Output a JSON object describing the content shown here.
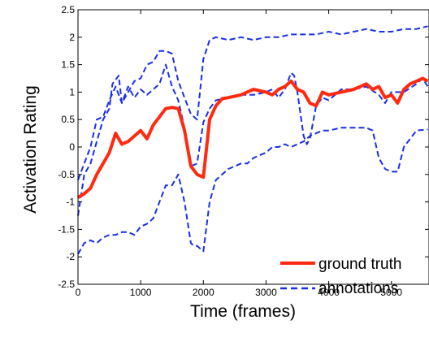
{
  "chart_data": {
    "type": "line",
    "title": "",
    "xlabel": "Time (frames)",
    "ylabel": "Activation Rating",
    "xlim": [
      0,
      5600
    ],
    "ylim": [
      -2.5,
      2.5
    ],
    "xticks": [
      0,
      1000,
      2000,
      3000,
      4000,
      5000
    ],
    "yticks": [
      -2.5,
      -2,
      -1.5,
      -1,
      -0.5,
      0,
      0.5,
      1,
      1.5,
      2,
      2.5
    ],
    "xtick_labels": [
      "0",
      "1000",
      "2000",
      "3000",
      "4000",
      "5000"
    ],
    "ytick_labels": [
      "-2.5",
      "-2",
      "-1.5",
      "-1",
      "-0.5",
      "0",
      "0.5",
      "1",
      "1.5",
      "2",
      "2.5"
    ],
    "grid": false,
    "legend_position": "bottom-right",
    "legend": [
      "ground truth",
      "annotations"
    ],
    "series": [
      {
        "name": "ground truth",
        "color": "#ff2a10",
        "style": "solid",
        "x": [
          0,
          100,
          200,
          300,
          400,
          500,
          600,
          700,
          800,
          900,
          1000,
          1100,
          1200,
          1300,
          1400,
          1500,
          1600,
          1700,
          1800,
          1900,
          2000,
          2100,
          2200,
          2300,
          2400,
          2600,
          2800,
          3000,
          3100,
          3200,
          3300,
          3400,
          3500,
          3600,
          3700,
          3800,
          3900,
          4000,
          4200,
          4400,
          4600,
          4700,
          4800,
          4900,
          5000,
          5100,
          5200,
          5300,
          5400,
          5500,
          5580
        ],
        "y": [
          -0.92,
          -0.85,
          -0.75,
          -0.5,
          -0.3,
          -0.1,
          0.25,
          0.05,
          0.1,
          0.2,
          0.3,
          0.15,
          0.4,
          0.55,
          0.7,
          0.72,
          0.7,
          0.3,
          -0.35,
          -0.5,
          -0.55,
          0.5,
          0.75,
          0.88,
          0.9,
          0.95,
          1.05,
          1.0,
          0.95,
          1.05,
          1.1,
          1.2,
          1.05,
          1.0,
          0.8,
          0.75,
          1.0,
          0.95,
          1.0,
          1.05,
          1.15,
          1.05,
          1.1,
          0.9,
          0.95,
          0.8,
          1.05,
          1.15,
          1.2,
          1.25,
          1.2
        ]
      },
      {
        "name": "",
        "color": "#1a2ee8",
        "style": "dashed",
        "x": [
          0,
          100,
          200,
          300,
          400,
          500,
          550,
          650,
          700,
          800,
          900,
          1000,
          1100,
          1200,
          1300,
          1400,
          1500,
          1600,
          1700,
          1800,
          1900,
          2000,
          2100,
          2200,
          2400,
          2600,
          2800,
          3000,
          3200,
          3400,
          3600,
          3800,
          4000,
          4200,
          4400,
          4600,
          4800,
          5000,
          5200,
          5400,
          5580
        ],
        "y": [
          -1.25,
          -0.5,
          -0.3,
          0.1,
          0.5,
          0.7,
          1.15,
          1.3,
          0.8,
          1.0,
          1.2,
          1.25,
          1.5,
          1.55,
          1.75,
          1.75,
          1.7,
          1.2,
          0.9,
          0.6,
          0.5,
          1.6,
          1.95,
          2.0,
          1.95,
          2.0,
          1.95,
          2.0,
          2.0,
          2.05,
          2.05,
          2.05,
          2.1,
          2.05,
          2.1,
          2.15,
          2.1,
          2.1,
          2.15,
          2.15,
          2.2
        ]
      },
      {
        "name": "",
        "color": "#1a2ee8",
        "style": "dashed",
        "x": [
          0,
          100,
          200,
          300,
          400,
          500,
          600,
          700,
          800,
          900,
          1000,
          1100,
          1200,
          1300,
          1400,
          1500,
          1600,
          1700,
          1800,
          1900,
          2000,
          2100,
          2200,
          2400,
          2600,
          2800,
          3000,
          3100,
          3200,
          3300,
          3400,
          3450,
          3500,
          3600,
          3650,
          3700,
          3800,
          3900,
          4000,
          4200,
          4400,
          4600,
          4800,
          4900,
          5000,
          5200,
          5400,
          5500,
          5580
        ],
        "y": [
          -0.6,
          -0.3,
          0.0,
          0.5,
          0.55,
          0.85,
          1.1,
          0.8,
          1.1,
          0.9,
          1.05,
          0.95,
          1.05,
          1.15,
          1.5,
          1.1,
          0.85,
          0.35,
          -0.35,
          -0.3,
          0.45,
          0.7,
          0.85,
          0.9,
          0.95,
          0.95,
          1.0,
          1.05,
          0.9,
          1.05,
          1.35,
          1.3,
          1.0,
          0.2,
          0.05,
          0.15,
          0.75,
          0.9,
          0.85,
          1.05,
          1.05,
          1.1,
          0.95,
          0.8,
          1.0,
          1.0,
          1.15,
          1.25,
          1.1
        ]
      },
      {
        "name": "",
        "color": "#1a2ee8",
        "style": "dashed",
        "x": [
          0,
          100,
          200,
          300,
          400,
          500,
          600,
          700,
          800,
          900,
          1000,
          1100,
          1200,
          1300,
          1400,
          1500,
          1600,
          1700,
          1800,
          1850,
          1900,
          2000,
          2100,
          2200,
          2300,
          2400,
          2500,
          2600,
          2700,
          2800,
          2900,
          3000,
          3100,
          3200,
          3300,
          3400,
          3500,
          3600,
          3700,
          3800,
          3900,
          4000,
          4200,
          4400,
          4600,
          4700,
          4800,
          4900,
          5000,
          5100,
          5200,
          5400,
          5580
        ],
        "y": [
          -1.95,
          -1.75,
          -1.7,
          -1.75,
          -1.65,
          -1.6,
          -1.6,
          -1.55,
          -1.55,
          -1.6,
          -1.45,
          -1.4,
          -1.3,
          -1.0,
          -0.7,
          -0.7,
          -0.5,
          -1.0,
          -1.75,
          -1.8,
          -1.8,
          -1.9,
          -1.0,
          -0.6,
          -0.5,
          -0.4,
          -0.35,
          -0.3,
          -0.3,
          -0.2,
          -0.15,
          -0.1,
          0.0,
          0.0,
          0.05,
          0.0,
          0.05,
          0.1,
          0.2,
          0.25,
          0.3,
          0.3,
          0.35,
          0.35,
          0.35,
          0.3,
          -0.2,
          -0.4,
          -0.45,
          -0.45,
          0.0,
          0.3,
          0.32
        ]
      }
    ]
  }
}
